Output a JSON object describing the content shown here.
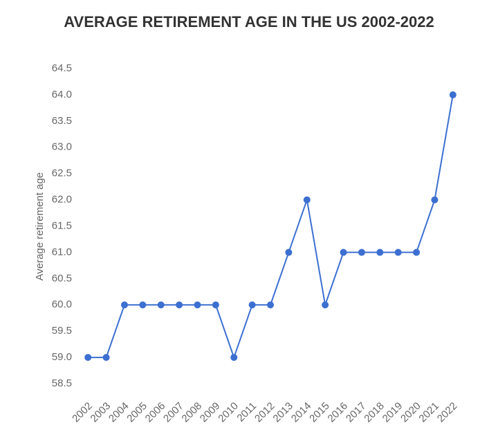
{
  "chart_data": {
    "type": "line",
    "title": "AVERAGE RETIREMENT AGE IN THE US 2002-2022",
    "y_label": "Average retirement age",
    "categories": [
      "2002",
      "2003",
      "2004",
      "2005",
      "2006",
      "2007",
      "2008",
      "2009",
      "2010",
      "2011",
      "2012",
      "2013",
      "2014",
      "2015",
      "2016",
      "2017",
      "2018",
      "2019",
      "2020",
      "2021",
      "2022"
    ],
    "series": [
      {
        "name": "Average retirement age",
        "color": "#3c6fd1",
        "values": [
          59,
          59,
          60,
          60,
          60,
          60,
          60,
          60,
          59,
          60,
          60,
          61,
          62,
          60,
          61,
          61,
          61,
          61,
          61,
          62,
          64
        ]
      }
    ],
    "ylim": [
      58.5,
      64.5
    ],
    "yticks": [
      58.5,
      {
        "value": 59,
        "label": "59.0"
      },
      59.5,
      {
        "value": 60,
        "label": "60.0"
      },
      60.5,
      {
        "value": 61,
        "label": "61.0"
      },
      61.5,
      {
        "value": 62,
        "label": "62.0"
      },
      62.5,
      {
        "value": 63,
        "label": "63.0"
      },
      63.5,
      {
        "value": 64,
        "label": "64.0"
      },
      64.5
    ],
    "grid": false
  }
}
